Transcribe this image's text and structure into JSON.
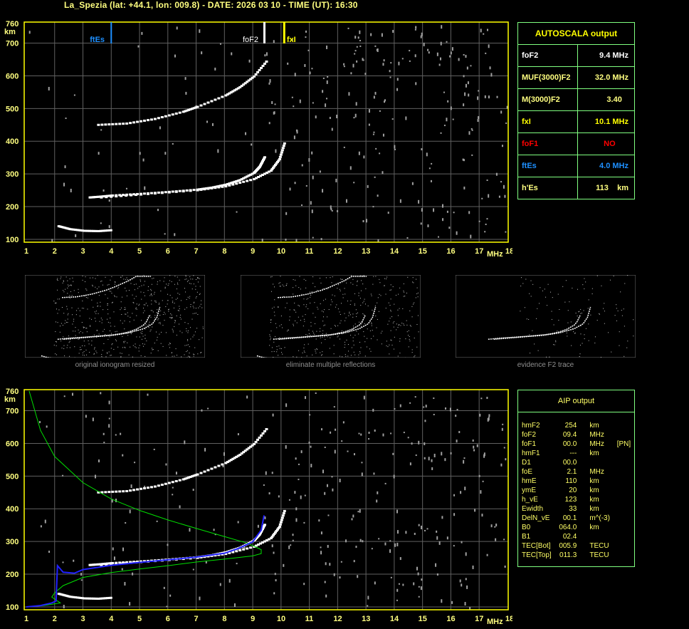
{
  "header": {
    "title": "La_Spezia (lat: +44.1, lon: 009.8) - DATE: 2026 03 10 - TIME (UT): 16:30"
  },
  "autoscala": {
    "title": "AUTOSCALA output",
    "rows": [
      {
        "label": "foF2",
        "value": "9.4 MHz",
        "color": "#ffffff"
      },
      {
        "label": "MUF(3000)F2",
        "value": "32.0 MHz",
        "color": "#ffff80"
      },
      {
        "label": "M(3000)F2",
        "value": "3.40   ",
        "color": "#ffff80"
      },
      {
        "label": "fxI",
        "value": "10.1 MHz",
        "color": "#ffff00"
      },
      {
        "label": "foF1",
        "value": "NO      ",
        "color": "#ff0000"
      },
      {
        "label": "ftEs",
        "value": "4.0 MHz",
        "color": "#1e90ff"
      },
      {
        "label": "h'Es",
        "value": "113    km",
        "color": "#ffff80"
      }
    ]
  },
  "aip": {
    "title": "AIP output",
    "rows": [
      {
        "name": "hmF2",
        "value": "254",
        "unit": "km",
        "extra": ""
      },
      {
        "name": "foF2",
        "value": "09.4",
        "unit": "MHz",
        "extra": ""
      },
      {
        "name": "foF1",
        "value": "00.0",
        "unit": "MHz",
        "extra": "[PN]"
      },
      {
        "name": "hmF1",
        "value": "---",
        "unit": "km",
        "extra": ""
      },
      {
        "name": "D1",
        "value": "00.0",
        "unit": "",
        "extra": ""
      },
      {
        "name": "foE",
        "value": "2.1",
        "unit": "MHz",
        "extra": ""
      },
      {
        "name": "hmE",
        "value": "110",
        "unit": "km",
        "extra": ""
      },
      {
        "name": "ymE",
        "value": "20",
        "unit": "km",
        "extra": ""
      },
      {
        "name": "h_vE",
        "value": "123",
        "unit": "km",
        "extra": ""
      },
      {
        "name": "Ewidth",
        "value": "33",
        "unit": "km",
        "extra": ""
      },
      {
        "name": "DelN_vE",
        "value": "00.1",
        "unit": "m^(-3)",
        "extra": ""
      },
      {
        "name": "B0",
        "value": "064.0",
        "unit": "km",
        "extra": ""
      },
      {
        "name": "B1",
        "value": "02.4",
        "unit": "",
        "extra": ""
      },
      {
        "name": "TEC[Bot]",
        "value": "005.9",
        "unit": "TECU",
        "extra": ""
      },
      {
        "name": "TEC[Top]",
        "value": "011.3",
        "unit": "TECU",
        "extra": ""
      }
    ]
  },
  "thumbnails": [
    {
      "caption": "original ionogram resized"
    },
    {
      "caption": "eliminate multiple reflections"
    },
    {
      "caption": "evidence F2 trace"
    }
  ],
  "chart_data": [
    {
      "type": "scatter",
      "xlabel": "MHz",
      "ylabel": "km",
      "xlim": [
        1,
        18
      ],
      "ylim": [
        100,
        760
      ],
      "xticks": [
        1,
        2,
        3,
        4,
        5,
        6,
        7,
        8,
        9,
        10,
        11,
        12,
        13,
        14,
        15,
        16,
        17,
        18
      ],
      "yticks": [
        100,
        200,
        300,
        400,
        500,
        600,
        700,
        760
      ],
      "grid": true,
      "markers": [
        {
          "name": "ftEs",
          "x": 4.0,
          "color": "#1e90ff"
        },
        {
          "name": "foF2",
          "x": 9.4,
          "color": "#ffffff"
        },
        {
          "name": "fxI",
          "x": 10.1,
          "color": "#ffff00"
        }
      ],
      "traces": {
        "F2_ordinary": [
          [
            3.2,
            228
          ],
          [
            3.5,
            230
          ],
          [
            4,
            234
          ],
          [
            5,
            239
          ],
          [
            6,
            245
          ],
          [
            7,
            252
          ],
          [
            7.5,
            258
          ],
          [
            8,
            267
          ],
          [
            8.5,
            281
          ],
          [
            9,
            303
          ],
          [
            9.2,
            322
          ],
          [
            9.4,
            355
          ]
        ],
        "F2_extraordinary": [
          [
            3.6,
            228
          ],
          [
            5,
            237
          ],
          [
            7,
            250
          ],
          [
            8,
            262
          ],
          [
            9,
            284
          ],
          [
            9.6,
            310
          ],
          [
            9.9,
            345
          ],
          [
            10.1,
            400
          ]
        ],
        "F2_multiple": [
          [
            3.5,
            450
          ],
          [
            4.5,
            454
          ],
          [
            5.5,
            468
          ],
          [
            6.5,
            490
          ],
          [
            7,
            505
          ],
          [
            8,
            540
          ],
          [
            8.5,
            565
          ],
          [
            9,
            598
          ],
          [
            9.5,
            650
          ]
        ],
        "Es": [
          [
            2.1,
            140
          ],
          [
            2.5,
            131
          ],
          [
            3,
            126
          ],
          [
            3.5,
            125
          ],
          [
            4,
            128
          ]
        ]
      }
    },
    {
      "type": "line",
      "xlabel": "MHz",
      "ylabel": "km",
      "xlim": [
        1,
        18
      ],
      "ylim": [
        100,
        760
      ],
      "xticks": [
        1,
        2,
        3,
        4,
        5,
        6,
        7,
        8,
        9,
        10,
        11,
        12,
        13,
        14,
        15,
        16,
        17,
        18
      ],
      "yticks": [
        100,
        200,
        300,
        400,
        500,
        600,
        700,
        760
      ],
      "grid": true,
      "series": [
        {
          "color": "#00e000",
          "points": [
            [
              1.1,
              760
            ],
            [
              1.5,
              640
            ],
            [
              2,
              560
            ],
            [
              3,
              480
            ],
            [
              4,
              430
            ],
            [
              5,
              395
            ],
            [
              6,
              366
            ],
            [
              7,
              340
            ],
            [
              8,
              315
            ],
            [
              8.8,
              295
            ],
            [
              9.3,
              275
            ],
            [
              9.3,
              263
            ],
            [
              9,
              256
            ],
            [
              8,
              246
            ],
            [
              7,
              237
            ],
            [
              6,
              226
            ],
            [
              5,
              216
            ],
            [
              4,
              205
            ],
            [
              3,
              190
            ],
            [
              2.3,
              165
            ],
            [
              2,
              143
            ],
            [
              1.9,
              130
            ],
            [
              2.2,
              112
            ],
            [
              1.6,
              104
            ],
            [
              1,
              100
            ]
          ]
        },
        {
          "color": "#2020ff",
          "points": [
            [
              1,
              100
            ],
            [
              1.5,
              104
            ],
            [
              1.9,
              112
            ],
            [
              2.05,
              118
            ],
            [
              2.1,
              226
            ],
            [
              2.3,
              206
            ],
            [
              2.7,
              203
            ],
            [
              3,
              214
            ],
            [
              4,
              227
            ],
            [
              5,
              236
            ],
            [
              6,
              244
            ],
            [
              7,
              252
            ],
            [
              8,
              264
            ],
            [
              8.5,
              279
            ],
            [
              9,
              299
            ],
            [
              9.3,
              335
            ],
            [
              9.4,
              380
            ]
          ]
        }
      ]
    }
  ]
}
